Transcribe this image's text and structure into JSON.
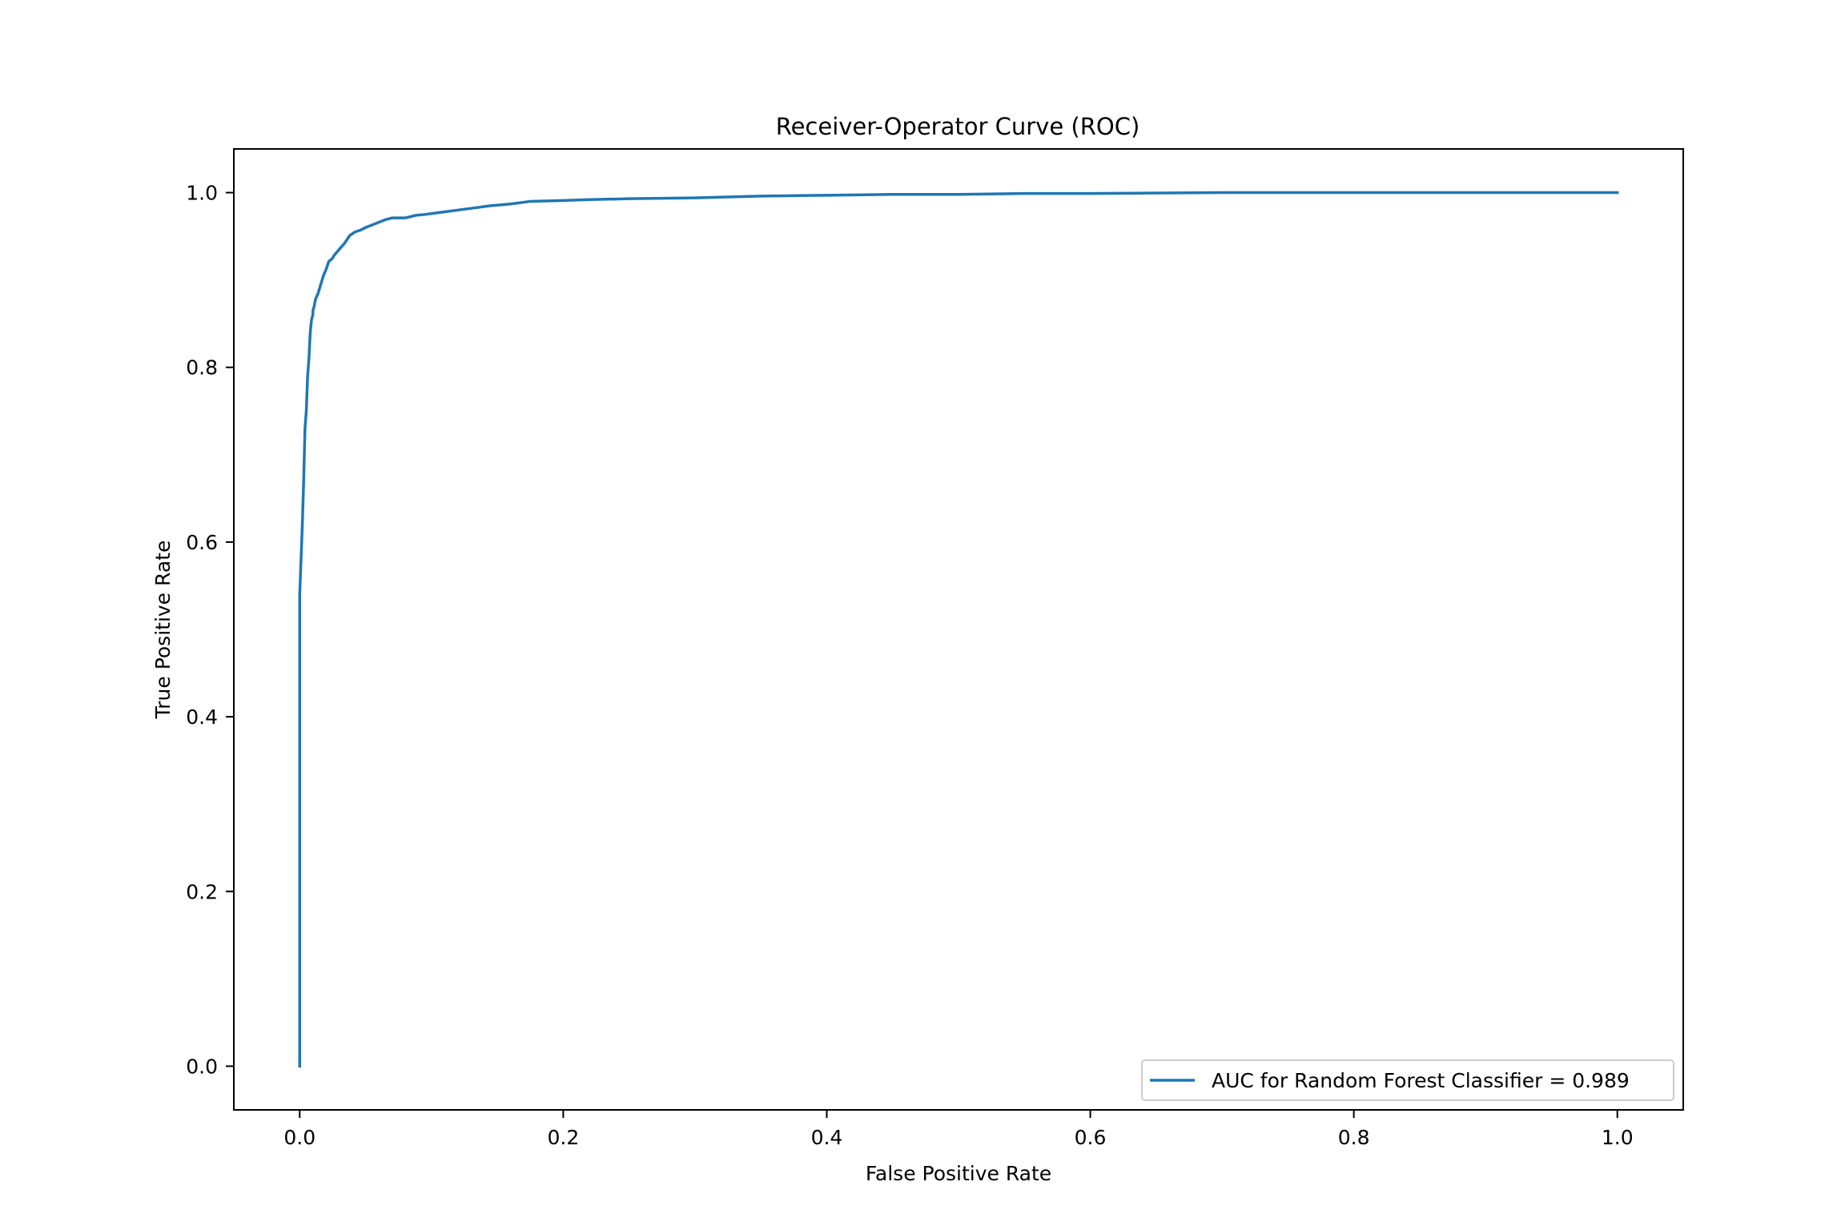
{
  "chart_data": {
    "type": "line",
    "title": "Receiver-Operator Curve (ROC)",
    "xlabel": "False Positive Rate",
    "ylabel": "True Positive Rate",
    "xlim": [
      -0.05,
      1.05
    ],
    "ylim": [
      -0.05,
      1.05
    ],
    "xticks": [
      0.0,
      0.2,
      0.4,
      0.6,
      0.8,
      1.0
    ],
    "yticks": [
      0.0,
      0.2,
      0.4,
      0.6,
      0.8,
      1.0
    ],
    "xtick_labels": [
      "0.0",
      "0.2",
      "0.4",
      "0.6",
      "0.8",
      "1.0"
    ],
    "ytick_labels": [
      "0.0",
      "0.2",
      "0.4",
      "0.6",
      "0.8",
      "1.0"
    ],
    "grid": false,
    "legend_position": "lower-right",
    "series": [
      {
        "name": "AUC for Random Forest Classifier = 0.989",
        "color": "#1f77b4",
        "x": [
          0.0,
          0.0,
          0.001,
          0.002,
          0.003,
          0.004,
          0.005,
          0.006,
          0.007,
          0.008,
          0.009,
          0.01,
          0.01,
          0.011,
          0.012,
          0.014,
          0.016,
          0.018,
          0.02,
          0.022,
          0.025,
          0.026,
          0.03,
          0.034,
          0.038,
          0.04,
          0.042,
          0.046,
          0.05,
          0.055,
          0.06,
          0.065,
          0.07,
          0.08,
          0.088,
          0.095,
          0.105,
          0.115,
          0.13,
          0.145,
          0.16,
          0.175,
          0.2,
          0.22,
          0.25,
          0.3,
          0.35,
          0.4,
          0.45,
          0.5,
          0.55,
          0.6,
          0.7,
          0.8,
          0.9,
          1.0
        ],
        "y": [
          0.0,
          0.54,
          0.58,
          0.62,
          0.67,
          0.73,
          0.75,
          0.79,
          0.81,
          0.84,
          0.855,
          0.86,
          0.865,
          0.87,
          0.878,
          0.885,
          0.895,
          0.905,
          0.912,
          0.921,
          0.925,
          0.928,
          0.935,
          0.942,
          0.951,
          0.953,
          0.955,
          0.957,
          0.96,
          0.963,
          0.966,
          0.969,
          0.971,
          0.971,
          0.974,
          0.975,
          0.977,
          0.979,
          0.982,
          0.985,
          0.987,
          0.99,
          0.991,
          0.992,
          0.993,
          0.994,
          0.996,
          0.997,
          0.998,
          0.998,
          0.999,
          0.999,
          1.0,
          1.0,
          1.0,
          1.0
        ]
      }
    ]
  }
}
